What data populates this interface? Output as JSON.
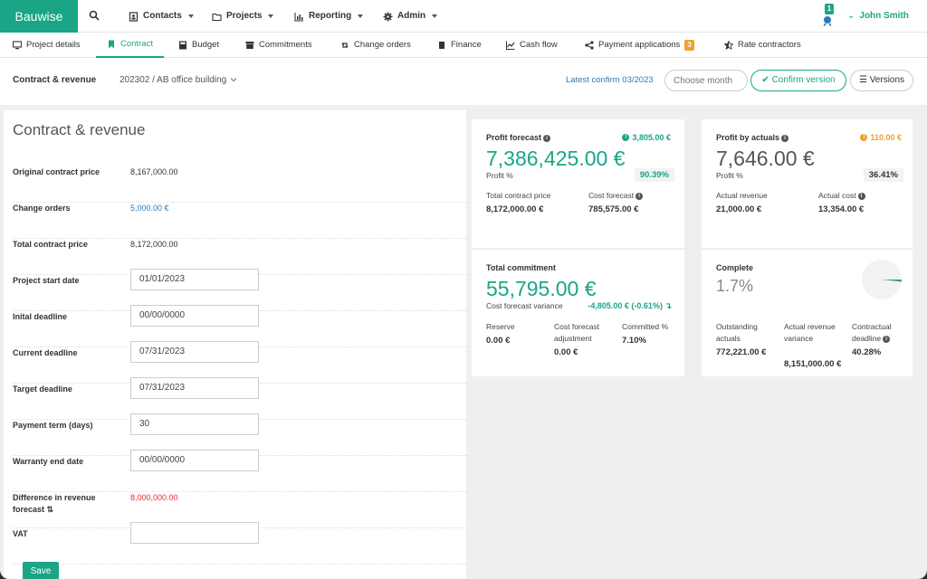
{
  "app": {
    "brand": "Bauwise"
  },
  "topnav": {
    "menus": [
      {
        "label": "Contacts",
        "icon": "contacts-icon"
      },
      {
        "label": "Projects",
        "icon": "folder-icon"
      },
      {
        "label": "Reporting",
        "icon": "bar-chart-icon"
      },
      {
        "label": "Admin",
        "icon": "gear-icon"
      }
    ],
    "notification_count": "1",
    "user": "John Smith"
  },
  "tabs": [
    {
      "label": "Project details",
      "icon": "monitor-icon"
    },
    {
      "label": "Contract",
      "icon": "bookmark-icon",
      "active": true
    },
    {
      "label": "Budget",
      "icon": "calculator-icon"
    },
    {
      "label": "Commitments",
      "icon": "archive-icon"
    },
    {
      "label": "Change orders",
      "icon": "retweet-icon"
    },
    {
      "label": "Finance",
      "icon": "book-icon"
    },
    {
      "label": "Cash flow",
      "icon": "line-chart-icon"
    },
    {
      "label": "Payment applications",
      "icon": "share-icon",
      "badge": "3"
    },
    {
      "label": "Rate contractors",
      "icon": "star-half-icon"
    }
  ],
  "subheader": {
    "title": "Contract & revenue",
    "project": "202302 / AB office building",
    "latest_confirm": "Latest confirm 03/2023",
    "choose_month_placeholder": "Choose month",
    "confirm_label": "Confirm version",
    "versions_label": "Versions"
  },
  "form": {
    "title": "Contract & revenue",
    "original_contract_price": {
      "label": "Original contract price",
      "value": "8,167,000.00"
    },
    "change_orders": {
      "label": "Change orders",
      "value": "5,000.00 €"
    },
    "total_contract_price": {
      "label": "Total contract price",
      "value": "8,172,000.00"
    },
    "project_start_date": {
      "label": "Project start date",
      "value": "01/01/2023"
    },
    "initial_deadline": {
      "label": "Inital deadline",
      "value": "00/00/0000"
    },
    "current_deadline": {
      "label": "Current deadline",
      "value": "07/31/2023"
    },
    "target_deadline": {
      "label": "Target deadline",
      "value": "07/31/2023"
    },
    "payment_term": {
      "label": "Payment term (days)",
      "value": "30"
    },
    "warranty_end_date": {
      "label": "Warranty end date",
      "value": "00/00/0000"
    },
    "difference_revenue": {
      "label": "Difference in revenue forecast",
      "value": "8,000,000.00"
    },
    "vat": {
      "label": "VAT",
      "value": ""
    },
    "save_label": "Save"
  },
  "cards": {
    "profit_forecast": {
      "title": "Profit forecast",
      "corner": "3,805.00 €",
      "big": "7,386,425.00 €",
      "pct_label": "Profit %",
      "pct": "90.39%",
      "sub1_label": "Total contract price",
      "sub1_value": "8,172,000.00 €",
      "sub2_label": "Cost forecast",
      "sub2_value": "785,575.00 €"
    },
    "profit_actuals": {
      "title": "Profit by actuals",
      "corner": "110.00 €",
      "big": "7,646.00 €",
      "pct_label": "Profit %",
      "pct": "36.41%",
      "sub1_label": "Actual revenue",
      "sub1_value": "21,000.00 €",
      "sub2_label": "Actual cost",
      "sub2_value": "13,354.00 €"
    },
    "total_commitment": {
      "title": "Total commitment",
      "big": "55,795.00 €",
      "variance_label": "Cost forecast variance",
      "variance_value": "-4,805.00 € (-0.61%)",
      "reserve_label": "Reserve",
      "reserve_value": "0.00 €",
      "adj_label": "Cost forecast adjustment",
      "adj_value": "0.00 €",
      "committed_label": "Committed %",
      "committed_value": "7.10%"
    },
    "complete": {
      "title": "Complete",
      "big": "1.7%",
      "progress": 0.017,
      "outstanding_label": "Outstanding actuals",
      "outstanding_value": "772,221.00 €",
      "arv_label": "Actual revenue variance",
      "arv_value": "8,151,000.00 €",
      "deadline_label": "Contractual deadline",
      "deadline_value": "40.28%"
    }
  },
  "colors": {
    "brand": "#1aa586",
    "link": "#2a7ab8",
    "warning": "#f0a030",
    "danger": "#e53030"
  }
}
